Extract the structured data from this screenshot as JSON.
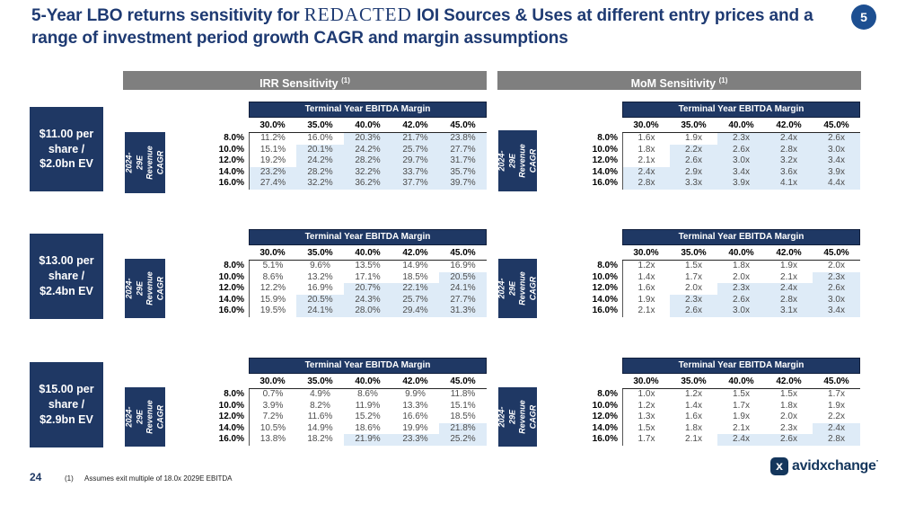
{
  "title": {
    "prefix": "5-Year LBO returns sensitivity for ",
    "redacted": "REDACTED",
    "suffix": " IOI Sources & Uses at different entry prices and a range of investment period growth CAGR and margin assumptions",
    "page_badge": "5"
  },
  "sections": [
    {
      "label": "IRR Sensitivity",
      "footnote_ref": "(1)"
    },
    {
      "label": "MoM Sensitivity",
      "footnote_ref": "(1)"
    }
  ],
  "chart_data": {
    "type": "table",
    "col_group_label": "Terminal Year EBITDA Margin",
    "row_group_label_lines": "2024-29E\nRevenue\nCAGR",
    "col_headers": [
      "30.0%",
      "35.0%",
      "40.0%",
      "42.0%",
      "45.0%"
    ],
    "row_headers": [
      "8.0%",
      "10.0%",
      "12.0%",
      "14.0%",
      "16.0%"
    ],
    "shading_rule": "cell shaded light blue where IRR >= 20.0%; MoM tables mirror the same cells",
    "groups": [
      {
        "price_lines": "$11.00 per\nshare /\n$2.0bn EV",
        "irr": [
          [
            "11.2%",
            "16.0%",
            "20.3%",
            "21.7%",
            "23.8%"
          ],
          [
            "15.1%",
            "20.1%",
            "24.2%",
            "25.7%",
            "27.7%"
          ],
          [
            "19.2%",
            "24.2%",
            "28.2%",
            "29.7%",
            "31.7%"
          ],
          [
            "23.2%",
            "28.2%",
            "32.2%",
            "33.7%",
            "35.7%"
          ],
          [
            "27.4%",
            "32.2%",
            "36.2%",
            "37.7%",
            "39.7%"
          ]
        ],
        "mom": [
          [
            "1.6x",
            "1.9x",
            "2.3x",
            "2.4x",
            "2.6x"
          ],
          [
            "1.8x",
            "2.2x",
            "2.6x",
            "2.8x",
            "3.0x"
          ],
          [
            "2.1x",
            "2.6x",
            "3.0x",
            "3.2x",
            "3.4x"
          ],
          [
            "2.4x",
            "2.9x",
            "3.4x",
            "3.6x",
            "3.9x"
          ],
          [
            "2.8x",
            "3.3x",
            "3.9x",
            "4.1x",
            "4.4x"
          ]
        ]
      },
      {
        "price_lines": "$13.00 per\nshare /\n$2.4bn EV",
        "irr": [
          [
            "5.1%",
            "9.6%",
            "13.5%",
            "14.9%",
            "16.9%"
          ],
          [
            "8.6%",
            "13.2%",
            "17.1%",
            "18.5%",
            "20.5%"
          ],
          [
            "12.2%",
            "16.9%",
            "20.7%",
            "22.1%",
            "24.1%"
          ],
          [
            "15.9%",
            "20.5%",
            "24.3%",
            "25.7%",
            "27.7%"
          ],
          [
            "19.5%",
            "24.1%",
            "28.0%",
            "29.4%",
            "31.3%"
          ]
        ],
        "mom": [
          [
            "1.2x",
            "1.5x",
            "1.8x",
            "1.9x",
            "2.0x"
          ],
          [
            "1.4x",
            "1.7x",
            "2.0x",
            "2.1x",
            "2.3x"
          ],
          [
            "1.6x",
            "2.0x",
            "2.3x",
            "2.4x",
            "2.6x"
          ],
          [
            "1.9x",
            "2.3x",
            "2.6x",
            "2.8x",
            "3.0x"
          ],
          [
            "2.1x",
            "2.6x",
            "3.0x",
            "3.1x",
            "3.4x"
          ]
        ]
      },
      {
        "price_lines": "$15.00 per\nshare /\n$2.9bn EV",
        "irr": [
          [
            "0.7%",
            "4.9%",
            "8.6%",
            "9.9%",
            "11.8%"
          ],
          [
            "3.9%",
            "8.2%",
            "11.9%",
            "13.3%",
            "15.1%"
          ],
          [
            "7.2%",
            "11.6%",
            "15.2%",
            "16.6%",
            "18.5%"
          ],
          [
            "10.5%",
            "14.9%",
            "18.6%",
            "19.9%",
            "21.8%"
          ],
          [
            "13.8%",
            "18.2%",
            "21.9%",
            "23.3%",
            "25.2%"
          ]
        ],
        "mom": [
          [
            "1.0x",
            "1.2x",
            "1.5x",
            "1.5x",
            "1.7x"
          ],
          [
            "1.2x",
            "1.4x",
            "1.7x",
            "1.8x",
            "1.9x"
          ],
          [
            "1.3x",
            "1.6x",
            "1.9x",
            "2.0x",
            "2.2x"
          ],
          [
            "1.5x",
            "1.8x",
            "2.1x",
            "2.3x",
            "2.4x"
          ],
          [
            "1.7x",
            "2.1x",
            "2.4x",
            "2.6x",
            "2.8x"
          ]
        ]
      }
    ]
  },
  "footer": {
    "page_number": "24",
    "footnote_num": "(1)",
    "footnote_text": "Assumes exit multiple of 18.0x 2029E EBITDA",
    "logo_x": "x",
    "logo_text": "avidxchange",
    "logo_mark": "·"
  },
  "colors": {
    "navy": "#1F3864",
    "title_blue": "#1E3A72",
    "badge_blue": "#1D4F91",
    "section_gray": "#7F7F7F",
    "cell_shade": "#DEEBF7",
    "data_text": "#4D4D4D",
    "logo_navy": "#14365C"
  }
}
